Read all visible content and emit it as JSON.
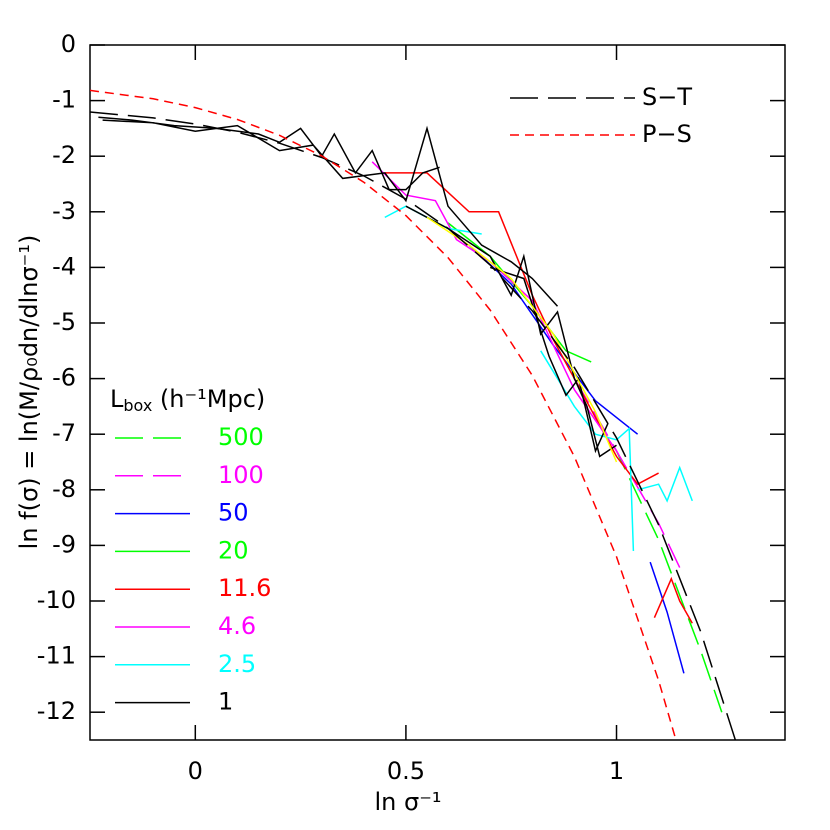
{
  "chart_data": {
    "type": "line",
    "y_label": "ln f(σ) = ln(M/ρ₀dn/dlnσ⁻¹)",
    "x_label": "ln σ⁻¹",
    "xlim": [
      -0.25,
      1.4
    ],
    "ylim": [
      -12.5,
      0
    ],
    "xticks": [
      0,
      0.5,
      1
    ],
    "yticks": [
      0,
      -1,
      -2,
      -3,
      -4,
      -5,
      -6,
      -7,
      -8,
      -9,
      -10,
      -11,
      -12
    ],
    "models_legend": "top-right",
    "models": [
      {
        "name": "S−T",
        "color": "#000000",
        "style": "long-dash",
        "x": [
          -0.25,
          -0.1,
          0,
          0.1,
          0.2,
          0.3,
          0.4,
          0.5,
          0.6,
          0.7,
          0.8,
          0.9,
          1.0,
          1.1,
          1.2,
          1.3
        ],
        "values": [
          -1.205,
          -1.311,
          -1.421,
          -1.569,
          -1.767,
          -2.024,
          -2.354,
          -2.771,
          -3.297,
          -3.957,
          -4.78,
          -5.803,
          -7.067,
          -8.63,
          -10.557,
          -12.924
        ]
      },
      {
        "name": "P−S",
        "color": "#ff0000",
        "style": "dashed",
        "x": [
          -0.25,
          -0.1,
          0,
          0.1,
          0.2,
          0.3,
          0.4,
          0.5,
          0.6,
          0.7,
          0.8,
          0.9,
          1.0,
          1.1,
          1.15
        ],
        "values": [
          -0.816,
          -0.967,
          -1.126,
          -1.34,
          -1.624,
          -1.994,
          -2.468,
          -3.068,
          -3.823,
          -4.768,
          -5.944,
          -7.404,
          -9.204,
          -11.43,
          -12.73
        ]
      }
    ],
    "series_legend": "bottom-left",
    "legend_title": {
      "main": "L",
      "sub": "box",
      "rest": " (h⁻¹Mpc)"
    },
    "series": [
      {
        "name": "500",
        "color": "#00ff00",
        "style": "long-dash",
        "x": [
          0.9,
          1.0,
          1.1,
          1.2,
          1.25
        ],
        "values": [
          -6.0,
          -7.3,
          -8.9,
          -10.9,
          -12.0
        ]
      },
      {
        "name": "100",
        "color": "#ff00ff",
        "style": "long-dash",
        "x": [
          0.9,
          1.0,
          1.1,
          1.15
        ],
        "values": [
          -6.0,
          -7.3,
          -8.6,
          -9.4
        ]
      },
      {
        "name": "50",
        "color": "#0000ff",
        "style": "solid",
        "x": [
          0.65,
          0.75,
          0.85,
          0.95,
          1.05,
          null,
          1.08,
          1.12,
          1.16
        ],
        "values": [
          -3.6,
          -4.3,
          -5.4,
          -6.4,
          -7.0,
          null,
          -9.3,
          -10.2,
          -11.3
        ]
      },
      {
        "name": "20",
        "color": "#00ff00",
        "style": "solid",
        "x": [
          0.6,
          0.7,
          0.8,
          0.88,
          0.94
        ],
        "values": [
          -3.2,
          -3.8,
          -4.7,
          -5.5,
          -5.7
        ]
      },
      {
        "name": "11.6",
        "color": "#ff0000",
        "style": "solid",
        "x": [
          0.45,
          0.55,
          0.65,
          0.72,
          0.8,
          0.85,
          1.0,
          1.05,
          1.1,
          null,
          1.09,
          1.13,
          1.15,
          1.18
        ],
        "values": [
          -2.3,
          -2.3,
          -3.0,
          -3.0,
          -4.5,
          -5.3,
          -7.4,
          -7.9,
          -7.7,
          null,
          -10.3,
          -9.6,
          -10.0,
          -10.4
        ]
      },
      {
        "name": "4.6",
        "color": "#ff00ff",
        "style": "solid",
        "x": [
          0.42,
          0.5,
          0.57,
          0.62,
          0.7,
          0.8,
          0.9,
          1.0
        ],
        "values": [
          -2.1,
          -2.7,
          -2.8,
          -3.5,
          -3.9,
          -4.6,
          -6.2,
          -7.3
        ]
      },
      {
        "name": "2.5",
        "color": "#00ffff",
        "style": "solid",
        "x": [
          0.45,
          0.5,
          0.6,
          0.68,
          null,
          0.82,
          0.9,
          0.95,
          1.0,
          1.03,
          1.04,
          null,
          1.05,
          1.1,
          1.12,
          1.15,
          1.18
        ],
        "values": [
          -3.1,
          -2.9,
          -3.3,
          -3.4,
          null,
          -5.5,
          -6.5,
          -7.0,
          -7.1,
          -6.9,
          -9.1,
          null,
          -8.0,
          -7.9,
          -8.2,
          -7.6,
          -8.2
        ]
      },
      {
        "name": "1",
        "color": "#000000",
        "style": "solid",
        "x": [
          -0.23,
          -0.15,
          -0.05,
          0.05,
          0.15,
          0.2,
          0.25,
          0.3,
          0.33,
          0.38,
          0.42,
          0.46,
          0.5,
          0.54,
          0.58,
          null,
          -0.22,
          -0.1,
          0.0,
          0.1,
          0.2,
          0.28,
          0.35,
          0.45,
          0.5,
          0.55,
          0.6,
          0.68,
          0.75,
          0.8,
          0.86,
          null,
          0.5,
          0.6,
          0.7,
          0.75,
          0.78,
          0.82,
          0.86,
          0.9,
          0.93,
          0.96,
          1.0,
          null,
          0.7,
          0.78,
          0.84,
          0.88,
          0.91,
          0.95,
          0.98
        ],
        "values": [
          -1.3,
          -1.35,
          -1.45,
          -1.5,
          -1.6,
          -1.75,
          -1.5,
          -2.0,
          -1.6,
          -2.3,
          -1.9,
          -2.6,
          -2.6,
          -2.3,
          -2.2,
          null,
          -1.35,
          -1.4,
          -1.55,
          -1.45,
          -1.9,
          -1.8,
          -2.4,
          -2.3,
          -2.8,
          -1.5,
          -2.9,
          -3.6,
          -3.9,
          -4.2,
          -4.7,
          null,
          -2.9,
          -3.3,
          -3.8,
          -4.5,
          -3.8,
          -5.2,
          -4.8,
          -6.0,
          -6.5,
          -7.4,
          -7.2,
          null,
          -4.0,
          -4.2,
          -5.6,
          -6.3,
          -6.0,
          -7.3,
          -6.8
        ]
      },
      {
        "color": "#ffff00",
        "style": "solid",
        "x": [
          0.55,
          0.65,
          0.75,
          0.85,
          0.95,
          1.0
        ],
        "values": [
          -3.1,
          -3.6,
          -4.2,
          -5.2,
          -6.6,
          -7.5
        ]
      }
    ]
  }
}
